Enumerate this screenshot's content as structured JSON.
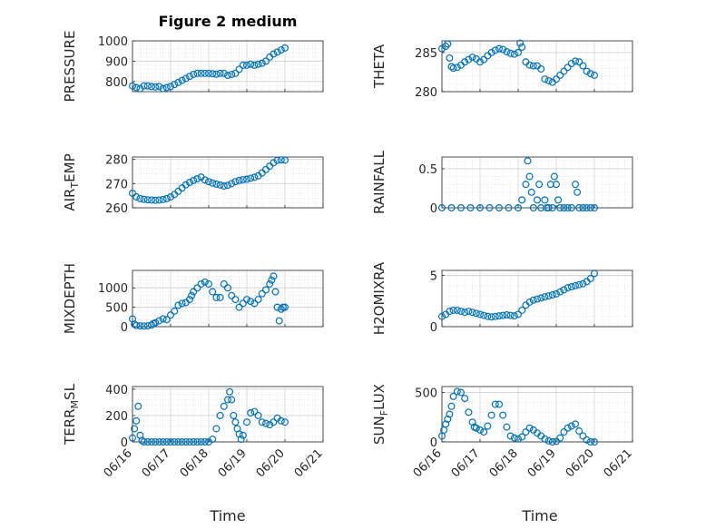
{
  "figure": {
    "title": "Figure 2 medium",
    "xlabel": "Time",
    "marker_color": "#0072BD",
    "grid": true
  },
  "chart_data": [
    {
      "type": "scatter",
      "name": "pressure",
      "ylabel": "PRESSURE",
      "title": "Figure 2 medium",
      "ylim": [
        750,
        1000
      ],
      "yticks": [
        "800",
        "900",
        "1000"
      ],
      "ytick_values": [
        800,
        900,
        1000
      ],
      "xlim": [
        0,
        5
      ],
      "xticks": [
        "06/16",
        "06/17",
        "06/18",
        "06/19",
        "06/20",
        "06/21"
      ],
      "x": [
        0.0,
        0.1,
        0.2,
        0.3,
        0.4,
        0.5,
        0.6,
        0.7,
        0.8,
        0.9,
        1.0,
        1.1,
        1.2,
        1.3,
        1.4,
        1.5,
        1.6,
        1.7,
        1.8,
        1.9,
        2.0,
        2.1,
        2.2,
        2.3,
        2.4,
        2.5,
        2.6,
        2.7,
        2.8,
        2.9,
        3.0,
        3.1,
        3.2,
        3.3,
        3.4,
        3.5,
        3.6,
        3.7,
        3.8,
        3.9,
        4.0
      ],
      "y": [
        778,
        770,
        765,
        778,
        778,
        775,
        773,
        775,
        765,
        770,
        775,
        785,
        795,
        805,
        815,
        825,
        835,
        840,
        840,
        840,
        840,
        838,
        836,
        840,
        840,
        830,
        835,
        840,
        860,
        880,
        880,
        885,
        880,
        885,
        890,
        900,
        920,
        935,
        945,
        955,
        965
      ]
    },
    {
      "type": "scatter",
      "name": "theta",
      "ylabel": "THETA",
      "ylim": [
        280,
        286.5
      ],
      "yticks": [
        "280",
        "285"
      ],
      "ytick_values": [
        280,
        285
      ],
      "xlim": [
        0,
        5
      ],
      "xticks": [
        "06/16",
        "06/17",
        "06/18",
        "06/19",
        "06/20",
        "06/21"
      ],
      "x": [
        0.0,
        0.1,
        0.15,
        0.2,
        0.25,
        0.3,
        0.4,
        0.5,
        0.6,
        0.7,
        0.8,
        0.9,
        1.0,
        1.1,
        1.2,
        1.3,
        1.4,
        1.5,
        1.6,
        1.7,
        1.8,
        1.9,
        2.0,
        2.05,
        2.1,
        2.2,
        2.3,
        2.4,
        2.5,
        2.6,
        2.7,
        2.8,
        2.9,
        3.0,
        3.1,
        3.2,
        3.3,
        3.4,
        3.5,
        3.6,
        3.7,
        3.8,
        3.9,
        4.0
      ],
      "y": [
        285.5,
        285.8,
        286.1,
        284.3,
        283.2,
        283.0,
        283.1,
        283.4,
        283.8,
        284.1,
        284.4,
        284.2,
        283.8,
        284.1,
        284.6,
        285.0,
        285.3,
        285.5,
        285.4,
        285.1,
        284.9,
        284.8,
        285.0,
        286.2,
        285.7,
        283.8,
        283.4,
        283.3,
        283.3,
        282.9,
        281.6,
        281.4,
        281.2,
        281.6,
        282.1,
        282.6,
        283.1,
        283.6,
        283.9,
        283.8,
        283.3,
        282.6,
        282.3,
        282.1
      ]
    },
    {
      "type": "scatter",
      "name": "air_temp",
      "ylabel": "AIR_TEMP",
      "ylim": [
        260,
        281
      ],
      "yticks": [
        "260",
        "270",
        "280"
      ],
      "ytick_values": [
        260,
        270,
        280
      ],
      "xlim": [
        0,
        5
      ],
      "xticks": [
        "06/16",
        "06/17",
        "06/18",
        "06/19",
        "06/20",
        "06/21"
      ],
      "x": [
        0.0,
        0.1,
        0.2,
        0.3,
        0.4,
        0.5,
        0.6,
        0.7,
        0.8,
        0.9,
        1.0,
        1.1,
        1.2,
        1.3,
        1.4,
        1.5,
        1.6,
        1.7,
        1.8,
        1.9,
        2.0,
        2.1,
        2.2,
        2.3,
        2.4,
        2.5,
        2.6,
        2.7,
        2.8,
        2.9,
        3.0,
        3.1,
        3.2,
        3.3,
        3.4,
        3.5,
        3.6,
        3.7,
        3.8,
        3.9,
        4.0
      ],
      "y": [
        266,
        264.5,
        263.8,
        263.5,
        263.3,
        263.2,
        263.1,
        263.2,
        263.4,
        263.8,
        264.5,
        265.5,
        266.8,
        268.2,
        269.5,
        270.5,
        271.3,
        272.0,
        272.7,
        271.5,
        270.8,
        270.2,
        269.8,
        269.4,
        269.0,
        269.3,
        270.0,
        270.8,
        271.3,
        271.6,
        271.8,
        272.2,
        272.6,
        273.2,
        274.4,
        275.8,
        277.2,
        278.6,
        279.6,
        279.8,
        279.7
      ]
    },
    {
      "type": "scatter",
      "name": "rainfall",
      "ylabel": "RAINFALL",
      "ylim": [
        0,
        0.65
      ],
      "yticks": [
        "0",
        "0.5"
      ],
      "ytick_values": [
        0,
        0.5
      ],
      "xlim": [
        0,
        5
      ],
      "xticks": [
        "06/16",
        "06/17",
        "06/18",
        "06/19",
        "06/20",
        "06/21"
      ],
      "x": [
        0.0,
        0.25,
        0.5,
        0.75,
        1.0,
        1.25,
        1.5,
        1.75,
        2.0,
        2.1,
        2.2,
        2.25,
        2.3,
        2.35,
        2.4,
        2.5,
        2.55,
        2.6,
        2.7,
        2.75,
        2.8,
        2.85,
        2.9,
        2.95,
        3.0,
        3.05,
        3.1,
        3.2,
        3.3,
        3.4,
        3.5,
        3.55,
        3.6,
        3.7,
        3.8,
        3.9,
        4.0
      ],
      "y": [
        0,
        0,
        0,
        0,
        0,
        0,
        0,
        0,
        0,
        0.1,
        0.3,
        0.6,
        0.4,
        0.2,
        0,
        0.1,
        0.3,
        0,
        0.1,
        0,
        0,
        0.3,
        0,
        0.4,
        0.3,
        0.1,
        0,
        0,
        0,
        0,
        0.3,
        0.2,
        0,
        0,
        0,
        0,
        0
      ]
    },
    {
      "type": "scatter",
      "name": "mixdepth",
      "ylabel": "MIXDEPTH",
      "ylim": [
        0,
        1450
      ],
      "yticks": [
        "0",
        "500",
        "1000"
      ],
      "ytick_values": [
        0,
        500,
        1000
      ],
      "xlim": [
        0,
        5
      ],
      "xticks": [
        "06/16",
        "06/17",
        "06/18",
        "06/19",
        "06/20",
        "06/21"
      ],
      "x": [
        0.0,
        0.05,
        0.1,
        0.2,
        0.3,
        0.4,
        0.5,
        0.55,
        0.6,
        0.7,
        0.8,
        0.9,
        1.0,
        1.1,
        1.2,
        1.3,
        1.4,
        1.5,
        1.55,
        1.6,
        1.7,
        1.8,
        1.9,
        2.0,
        2.1,
        2.2,
        2.3,
        2.4,
        2.5,
        2.6,
        2.7,
        2.8,
        2.9,
        3.0,
        3.1,
        3.2,
        3.3,
        3.4,
        3.5,
        3.6,
        3.65,
        3.7,
        3.75,
        3.8,
        3.85,
        3.9,
        3.95,
        4.0
      ],
      "y": [
        200,
        60,
        30,
        20,
        15,
        20,
        40,
        80,
        100,
        150,
        200,
        180,
        300,
        400,
        550,
        600,
        620,
        700,
        800,
        900,
        1000,
        1100,
        1150,
        1100,
        900,
        750,
        750,
        1100,
        1000,
        800,
        700,
        500,
        600,
        700,
        650,
        600,
        700,
        850,
        950,
        1100,
        1200,
        1300,
        900,
        500,
        150,
        450,
        500,
        500
      ]
    },
    {
      "type": "scatter",
      "name": "h2omixra",
      "ylabel": "H2OMIXRA",
      "ylim": [
        0,
        5.5
      ],
      "yticks": [
        "0",
        "5"
      ],
      "ytick_values": [
        0,
        5
      ],
      "xlim": [
        0,
        5
      ],
      "xticks": [
        "06/16",
        "06/17",
        "06/18",
        "06/19",
        "06/20",
        "06/21"
      ],
      "x": [
        0.0,
        0.1,
        0.2,
        0.3,
        0.4,
        0.5,
        0.6,
        0.7,
        0.8,
        0.9,
        1.0,
        1.1,
        1.2,
        1.3,
        1.4,
        1.5,
        1.6,
        1.7,
        1.8,
        1.9,
        2.0,
        2.1,
        2.2,
        2.3,
        2.4,
        2.5,
        2.6,
        2.7,
        2.8,
        2.9,
        3.0,
        3.1,
        3.2,
        3.3,
        3.4,
        3.5,
        3.6,
        3.7,
        3.8,
        3.9,
        4.0
      ],
      "y": [
        1.0,
        1.2,
        1.5,
        1.6,
        1.6,
        1.5,
        1.4,
        1.5,
        1.4,
        1.3,
        1.2,
        1.1,
        1.0,
        0.95,
        1.0,
        1.05,
        1.1,
        1.15,
        1.1,
        1.05,
        1.2,
        1.6,
        2.1,
        2.4,
        2.6,
        2.7,
        2.8,
        2.9,
        3.0,
        3.1,
        3.2,
        3.4,
        3.6,
        3.8,
        3.9,
        4.0,
        4.1,
        4.2,
        4.4,
        4.7,
        5.2
      ]
    },
    {
      "type": "scatter",
      "name": "terr_msl",
      "ylabel": "TERR_MSL",
      "ylim": [
        0,
        420
      ],
      "yticks": [
        "0",
        "200",
        "400"
      ],
      "ytick_values": [
        0,
        200,
        400
      ],
      "xlim": [
        0,
        5
      ],
      "xticks": [
        "06/16",
        "06/17",
        "06/18",
        "06/19",
        "06/20",
        "06/21"
      ],
      "x": [
        0.0,
        0.05,
        0.1,
        0.15,
        0.2,
        0.25,
        0.3,
        0.4,
        0.5,
        0.6,
        0.7,
        0.8,
        0.9,
        1.0,
        1.1,
        1.2,
        1.3,
        1.4,
        1.5,
        1.6,
        1.7,
        1.8,
        1.9,
        2.0,
        2.1,
        2.2,
        2.3,
        2.4,
        2.5,
        2.55,
        2.6,
        2.65,
        2.7,
        2.75,
        2.8,
        2.85,
        2.9,
        3.0,
        3.1,
        3.2,
        3.3,
        3.4,
        3.5,
        3.6,
        3.7,
        3.8,
        3.9,
        4.0
      ],
      "y": [
        30,
        100,
        160,
        270,
        50,
        10,
        0,
        0,
        0,
        0,
        0,
        0,
        0,
        0,
        0,
        0,
        0,
        0,
        0,
        0,
        0,
        0,
        0,
        0,
        20,
        100,
        200,
        270,
        320,
        380,
        320,
        200,
        150,
        100,
        60,
        20,
        50,
        150,
        220,
        230,
        200,
        150,
        140,
        130,
        150,
        180,
        160,
        150
      ]
    },
    {
      "type": "scatter",
      "name": "sun_flux",
      "ylabel": "SUN_FLUX",
      "ylim": [
        0,
        560
      ],
      "yticks": [
        "0",
        "500"
      ],
      "ytick_values": [
        0,
        500
      ],
      "xlim": [
        0,
        5
      ],
      "xticks": [
        "06/16",
        "06/17",
        "06/18",
        "06/19",
        "06/20",
        "06/21"
      ],
      "x": [
        0.0,
        0.05,
        0.1,
        0.15,
        0.2,
        0.25,
        0.3,
        0.4,
        0.5,
        0.6,
        0.7,
        0.8,
        0.85,
        0.9,
        1.0,
        1.1,
        1.2,
        1.3,
        1.4,
        1.5,
        1.6,
        1.7,
        1.8,
        1.9,
        2.0,
        2.1,
        2.2,
        2.3,
        2.4,
        2.5,
        2.6,
        2.7,
        2.8,
        2.9,
        3.0,
        3.1,
        3.2,
        3.3,
        3.4,
        3.5,
        3.6,
        3.7,
        3.8,
        3.9,
        4.0
      ],
      "y": [
        60,
        120,
        180,
        230,
        280,
        360,
        460,
        510,
        500,
        440,
        300,
        200,
        150,
        140,
        120,
        100,
        160,
        270,
        380,
        380,
        270,
        150,
        60,
        40,
        30,
        50,
        100,
        140,
        120,
        90,
        60,
        30,
        10,
        0,
        5,
        40,
        100,
        140,
        160,
        180,
        110,
        60,
        20,
        0,
        0
      ]
    }
  ]
}
